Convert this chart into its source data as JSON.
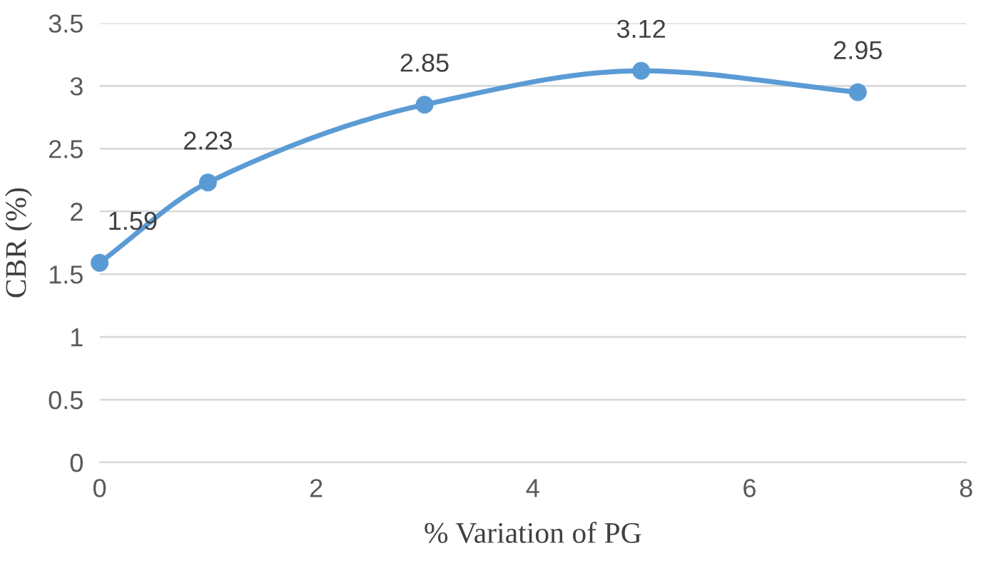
{
  "chart_data": {
    "type": "line",
    "xlabel": "% Variation of PG",
    "ylabel": "CBR (%)",
    "x": [
      0,
      1,
      3,
      5,
      7
    ],
    "series": [
      {
        "color": "#5b9bd5",
        "values": [
          1.59,
          2.23,
          2.85,
          3.12,
          2.95
        ]
      }
    ],
    "xlim": [
      0,
      8
    ],
    "xticks": [
      0,
      2,
      4,
      6,
      8
    ],
    "ylim": [
      0,
      3.5
    ],
    "yticks": [
      0,
      0.5,
      1,
      1.5,
      2,
      2.5,
      3,
      3.5
    ],
    "grid": "y",
    "marker": "circle",
    "line_style": "solid",
    "data_labels": true
  }
}
